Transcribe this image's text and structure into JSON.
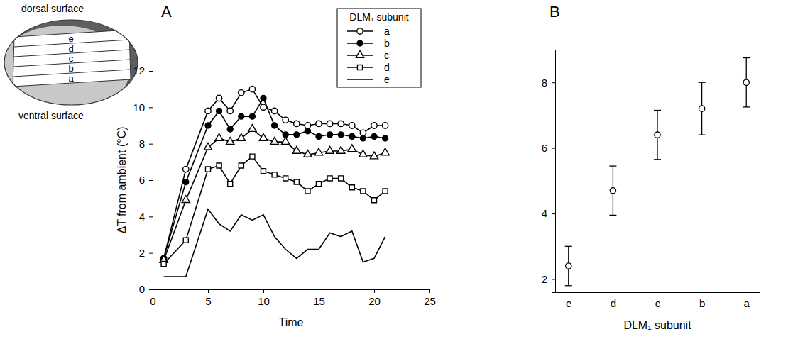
{
  "diagram": {
    "top_label": "dorsal surface",
    "bottom_label": "ventral surface",
    "layers": [
      "e",
      "d",
      "c",
      "b",
      "a"
    ]
  },
  "chart_data": [
    {
      "type": "line",
      "panel": "A",
      "x_label": "Time",
      "y_label": "ΔT from ambient (°C)",
      "x": [
        1,
        3,
        5,
        6,
        7,
        8,
        9,
        10,
        11,
        12,
        13,
        14,
        15,
        16,
        17,
        18,
        19,
        20,
        21
      ],
      "series": [
        {
          "name": "a",
          "color": "#000000",
          "marker": "circle-open",
          "line_style": "solid",
          "values": [
            1.7,
            6.6,
            9.8,
            10.5,
            9.8,
            10.8,
            11.0,
            10.0,
            9.8,
            9.3,
            9.1,
            9.0,
            9.1,
            9.1,
            9.1,
            9.0,
            8.6,
            9.0,
            9.0
          ]
        },
        {
          "name": "b",
          "color": "#000000",
          "marker": "circle",
          "line_style": "solid",
          "values": [
            1.7,
            5.9,
            9.0,
            9.8,
            8.8,
            9.5,
            9.5,
            10.5,
            9.0,
            8.5,
            8.5,
            8.7,
            8.4,
            8.5,
            8.5,
            8.4,
            8.3,
            8.4,
            8.3
          ]
        },
        {
          "name": "c",
          "color": "#000000",
          "marker": "triangle-open",
          "line_style": "solid",
          "values": [
            1.6,
            4.9,
            7.8,
            8.3,
            8.1,
            8.3,
            8.8,
            8.3,
            8.1,
            8.1,
            7.6,
            7.4,
            7.5,
            7.6,
            7.6,
            7.7,
            7.4,
            7.3,
            7.5
          ]
        },
        {
          "name": "d",
          "color": "#000000",
          "marker": "square-open",
          "line_style": "solid",
          "values": [
            1.4,
            2.7,
            6.6,
            6.8,
            5.8,
            6.8,
            7.3,
            6.5,
            6.3,
            6.1,
            5.9,
            5.4,
            5.8,
            6.1,
            6.1,
            5.6,
            5.4,
            4.9,
            5.4
          ]
        },
        {
          "name": "e",
          "color": "#000000",
          "marker": "none",
          "line_style": "solid",
          "values": [
            0.7,
            0.7,
            4.4,
            3.6,
            3.2,
            4.1,
            3.8,
            4.1,
            2.9,
            2.2,
            1.7,
            2.2,
            2.2,
            3.1,
            2.9,
            3.2,
            1.5,
            1.7,
            2.9
          ]
        }
      ],
      "xlim": [
        0,
        25
      ],
      "xticks": [
        0,
        5,
        10,
        15,
        20,
        25
      ],
      "ylim": [
        0,
        12
      ],
      "yticks": [
        0,
        2,
        4,
        6,
        8,
        10,
        12
      ],
      "legend": "top-right",
      "legend_title": "DLM₁ subunit"
    },
    {
      "type": "scatter",
      "panel": "B",
      "x_label": "DLM₁ subunit",
      "categories": [
        "e",
        "d",
        "c",
        "b",
        "a"
      ],
      "values": [
        2.4,
        4.7,
        6.4,
        7.2,
        8.0
      ],
      "errors": [
        0.6,
        0.75,
        0.75,
        0.8,
        0.75
      ],
      "color": "#000000",
      "marker": "circle-open",
      "ylim": [
        1.6,
        9.0
      ],
      "yticks": [
        2,
        4,
        6,
        8
      ]
    }
  ]
}
